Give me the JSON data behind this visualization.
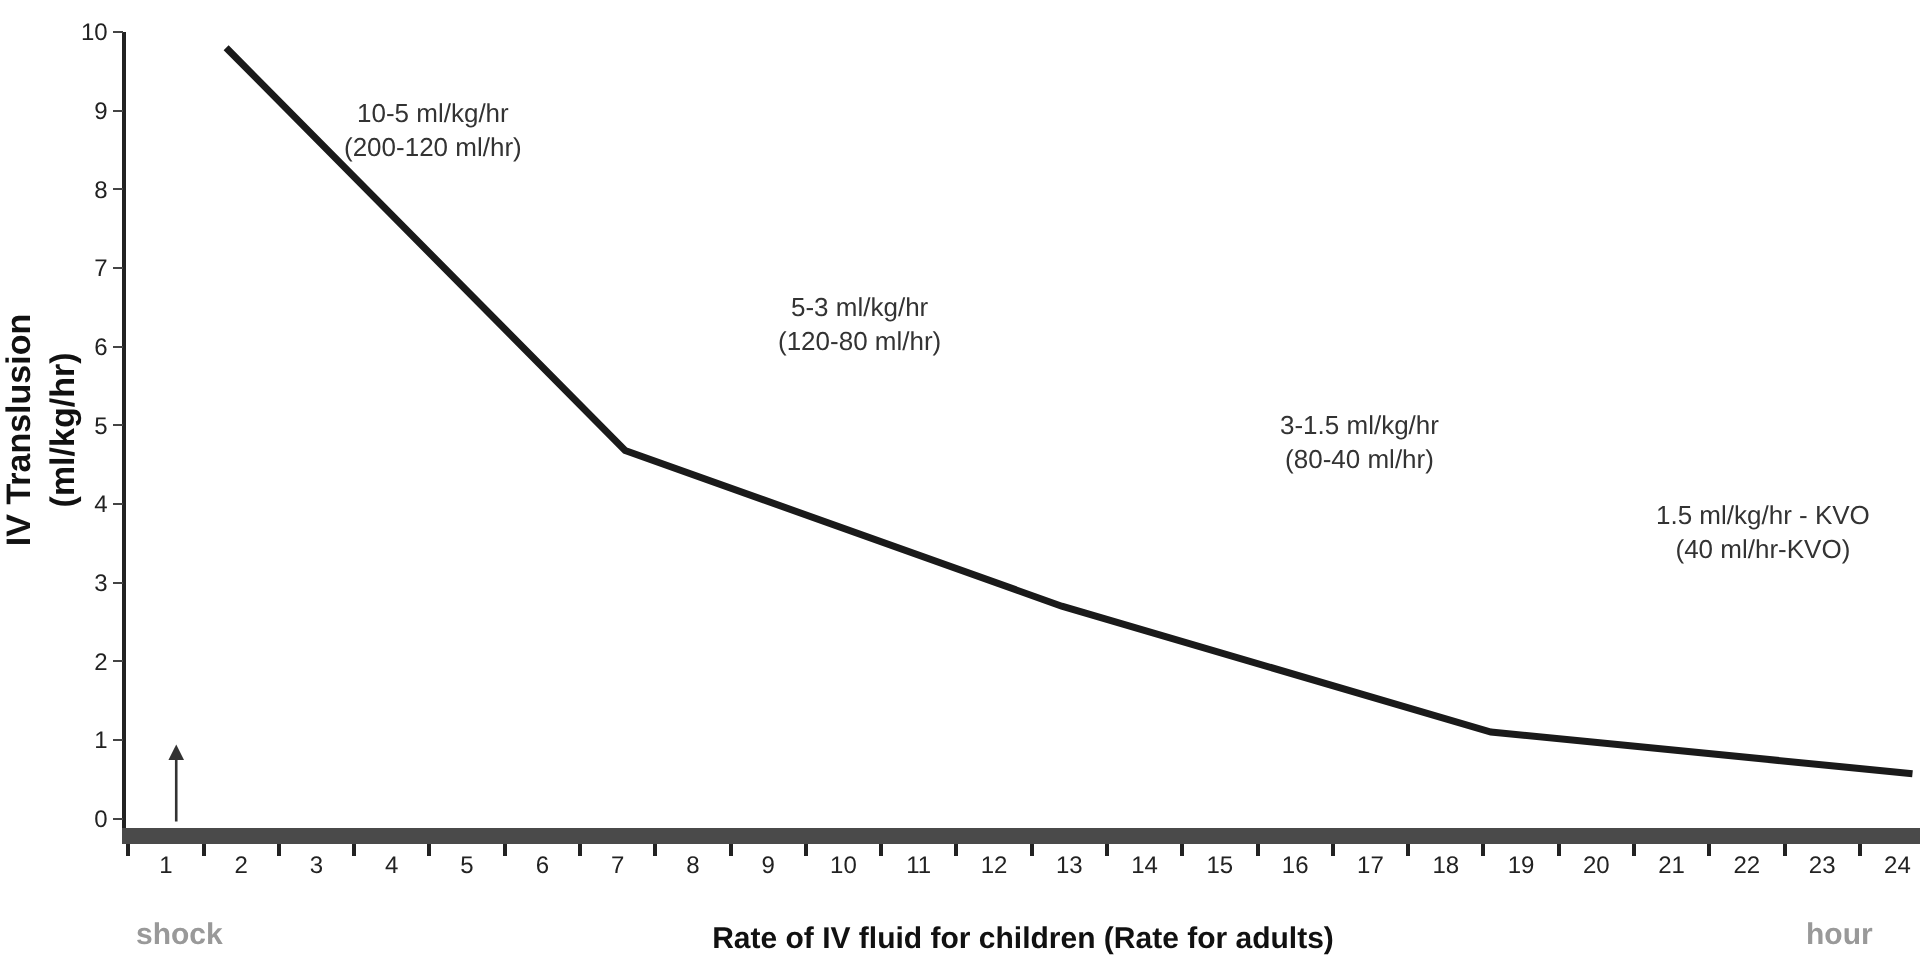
{
  "chart_data": {
    "type": "line",
    "xlabel": "Rate of IV fluid for children (Rate for adults)",
    "ylabel": "IV Translusion\n(ml/kg/hr)",
    "x": [
      1.8,
      7.1,
      12.9,
      18.6,
      24.2
    ],
    "series": [
      {
        "color": "#1a1a1a",
        "values": [
          9.8,
          4.68,
          2.7,
          1.1,
          0.57
        ]
      }
    ],
    "xlim": [
      0.47,
      24.3
    ],
    "ylim": [
      -0.12,
      10
    ],
    "xticks": [
      1,
      2,
      3,
      4,
      5,
      6,
      7,
      8,
      9,
      10,
      11,
      12,
      13,
      14,
      15,
      16,
      17,
      18,
      19,
      20,
      21,
      22,
      23,
      24
    ],
    "yticks": [
      0,
      1,
      2,
      3,
      4,
      5,
      6,
      7,
      8,
      9,
      10
    ],
    "marker": "none",
    "line_style": "solid",
    "annotations": [
      "10-5 ml/kg/hr\n(200-120 ml/hr)",
      "5-3 ml/kg/hr\n(120-80 ml/hr)",
      "3-1.5 ml/kg/hr\n(80-40 ml/hr)",
      "1.5 ml/kg/hr - KVO\n(40 ml/hr-KVO)",
      "shock",
      "hour"
    ]
  }
}
